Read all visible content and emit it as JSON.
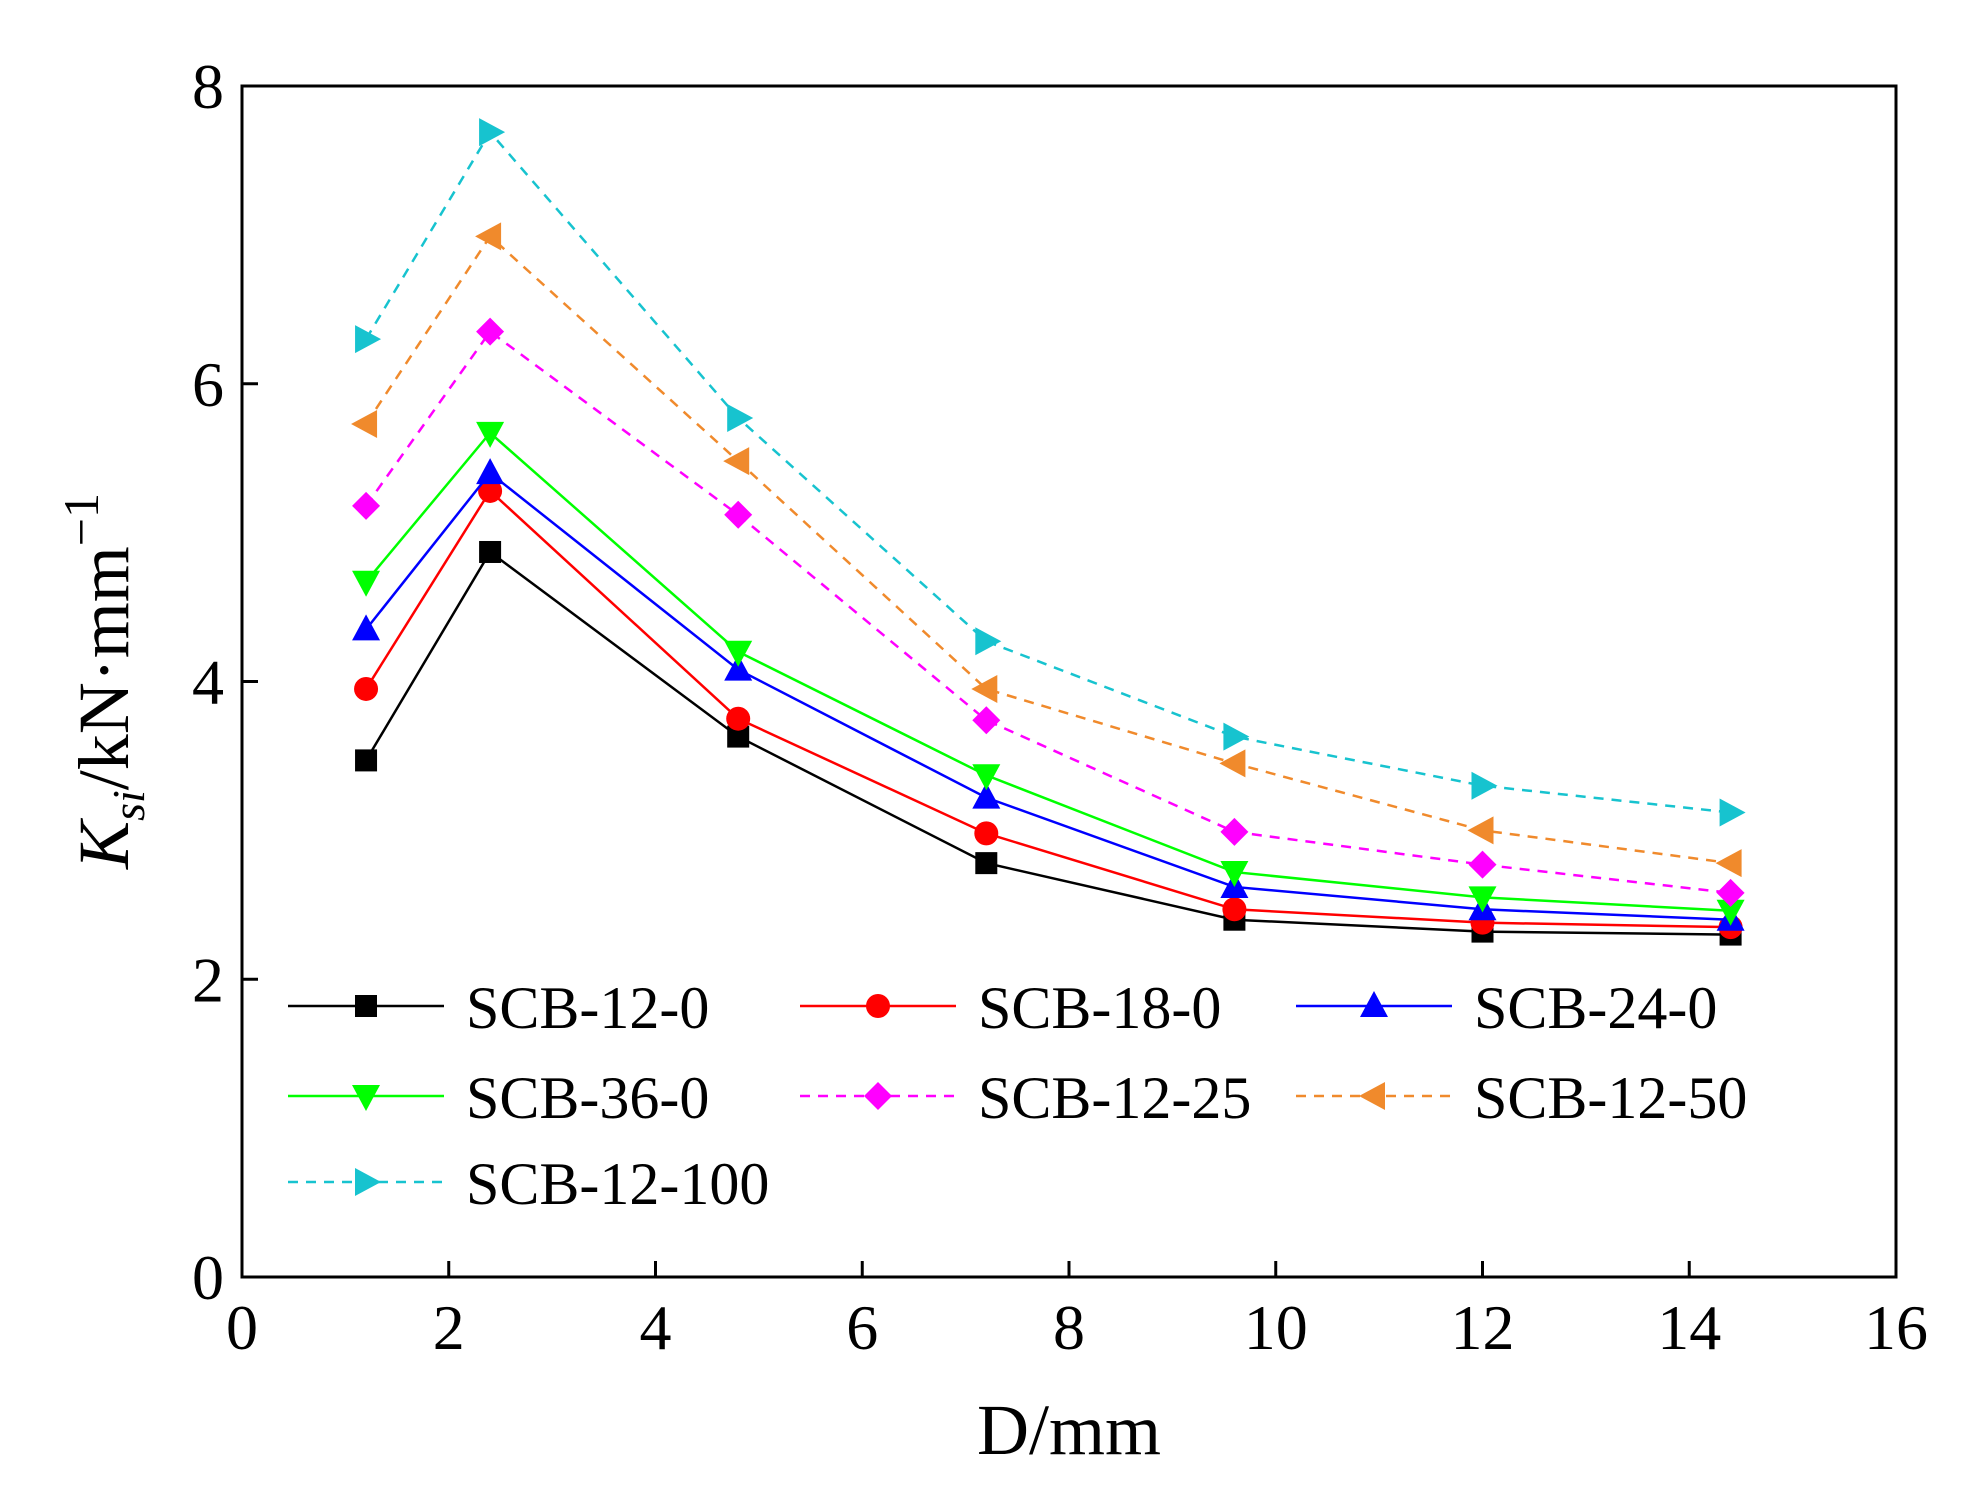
{
  "chart_data": {
    "type": "line",
    "xlabel": "D/mm",
    "ylabel": {
      "prefix": "K",
      "sub": "si",
      "rest": "/kN·mm",
      "sup": "−1"
    },
    "xlim": [
      0,
      16
    ],
    "ylim": [
      0,
      8
    ],
    "xticks": [
      0,
      2,
      4,
      6,
      8,
      10,
      12,
      14,
      16
    ],
    "yticks": [
      0,
      2,
      4,
      6,
      8
    ],
    "x": [
      1.2,
      2.4,
      4.8,
      7.2,
      9.6,
      12.0,
      14.4
    ],
    "legend_position": "lower-left inside plot",
    "series": [
      {
        "name": "SCB-12-0",
        "color": "#000000",
        "marker": "square",
        "dash": "solid",
        "values": [
          3.47,
          4.87,
          3.63,
          2.78,
          2.4,
          2.32,
          2.3
        ]
      },
      {
        "name": "SCB-18-0",
        "color": "#ff0000",
        "marker": "circle",
        "dash": "solid",
        "values": [
          3.95,
          5.28,
          3.75,
          2.98,
          2.47,
          2.38,
          2.35
        ]
      },
      {
        "name": "SCB-24-0",
        "color": "#0000ff",
        "marker": "triangle-up",
        "dash": "solid",
        "values": [
          4.35,
          5.4,
          4.08,
          3.22,
          2.62,
          2.47,
          2.4
        ]
      },
      {
        "name": "SCB-36-0",
        "color": "#00ff00",
        "marker": "triangle-down",
        "dash": "solid",
        "values": [
          4.67,
          5.67,
          4.2,
          3.37,
          2.72,
          2.55,
          2.46
        ]
      },
      {
        "name": "SCB-12-25",
        "color": "#ff00ff",
        "marker": "diamond",
        "dash": "dashed",
        "values": [
          5.18,
          6.35,
          5.12,
          3.74,
          2.99,
          2.77,
          2.58
        ]
      },
      {
        "name": "SCB-12-50",
        "color": "#f08a2c",
        "marker": "triangle-left",
        "dash": "dashed",
        "values": [
          5.73,
          6.99,
          5.48,
          3.95,
          3.45,
          3.0,
          2.78
        ]
      },
      {
        "name": "SCB-12-100",
        "color": "#17c3cf",
        "marker": "triangle-right",
        "dash": "dashed",
        "values": [
          6.3,
          7.69,
          5.77,
          4.27,
          3.63,
          3.3,
          3.12
        ]
      }
    ]
  }
}
